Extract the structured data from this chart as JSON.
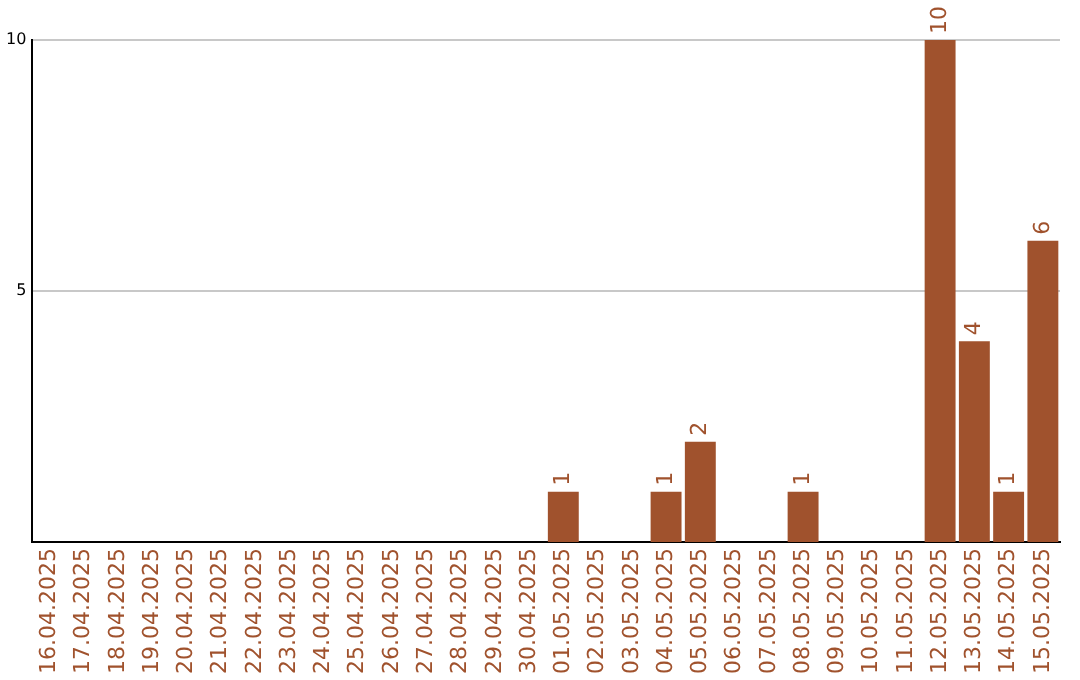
{
  "chart_data": {
    "type": "bar",
    "categories": [
      "16.04.2025",
      "17.04.2025",
      "18.04.2025",
      "19.04.2025",
      "20.04.2025",
      "21.04.2025",
      "22.04.2025",
      "23.04.2025",
      "24.04.2025",
      "25.04.2025",
      "26.04.2025",
      "27.04.2025",
      "28.04.2025",
      "29.04.2025",
      "30.04.2025",
      "01.05.2025",
      "02.05.2025",
      "03.05.2025",
      "04.05.2025",
      "05.05.2025",
      "06.05.2025",
      "07.05.2025",
      "08.05.2025",
      "09.05.2025",
      "10.05.2025",
      "11.05.2025",
      "12.05.2025",
      "13.05.2025",
      "14.05.2025",
      "15.05.2025"
    ],
    "values": [
      null,
      null,
      null,
      null,
      null,
      null,
      null,
      null,
      null,
      null,
      null,
      null,
      null,
      null,
      null,
      1,
      null,
      null,
      1,
      2,
      null,
      null,
      1,
      null,
      null,
      null,
      10,
      4,
      1,
      6
    ],
    "color": "#a0522d",
    "ylim": [
      0,
      10
    ],
    "yticks": [
      5,
      10
    ],
    "grid": "y",
    "data_labels": true,
    "legend": false
  }
}
